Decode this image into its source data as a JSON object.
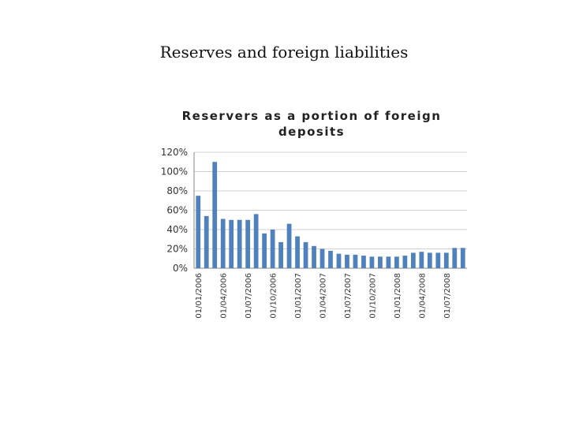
{
  "slide": {
    "title": "Reserves and foreign liabilities"
  },
  "colors": {
    "bar": "#4F81BD",
    "grid": "#D0D0D0",
    "axis": "#888888"
  },
  "chart_data": {
    "type": "bar",
    "title_lines": [
      "Reservers as a portion of foreign",
      "deposits"
    ],
    "grid": true,
    "y_ticks": [
      "0%",
      "20%",
      "40%",
      "60%",
      "80%",
      "100%",
      "120%"
    ],
    "ylim": [
      0,
      1.2
    ],
    "x_tick_labels": [
      "01/01/2006",
      "01/04/2006",
      "01/07/2006",
      "01/10/2006",
      "01/01/2007",
      "01/04/2007",
      "01/07/2007",
      "01/10/2007",
      "01/01/2008",
      "01/04/2008",
      "01/07/2008"
    ],
    "categories": [
      "01/01/2006",
      "01/02/2006",
      "01/03/2006",
      "01/04/2006",
      "01/05/2006",
      "01/06/2006",
      "01/07/2006",
      "01/08/2006",
      "01/09/2006",
      "01/10/2006",
      "01/11/2006",
      "01/12/2006",
      "01/01/2007",
      "01/02/2007",
      "01/03/2007",
      "01/04/2007",
      "01/05/2007",
      "01/06/2007",
      "01/07/2007",
      "01/08/2007",
      "01/09/2007",
      "01/10/2007",
      "01/11/2007",
      "01/12/2007",
      "01/01/2008",
      "01/02/2008",
      "01/03/2008",
      "01/04/2008",
      "01/05/2008",
      "01/06/2008",
      "01/07/2008",
      "01/08/2008",
      "01/09/2008"
    ],
    "values": [
      0.75,
      0.54,
      1.1,
      0.51,
      0.5,
      0.5,
      0.5,
      0.56,
      0.36,
      0.4,
      0.27,
      0.46,
      0.33,
      0.27,
      0.23,
      0.2,
      0.18,
      0.15,
      0.14,
      0.14,
      0.13,
      0.12,
      0.12,
      0.12,
      0.12,
      0.13,
      0.16,
      0.17,
      0.16,
      0.16,
      0.16,
      0.21,
      0.21
    ]
  }
}
